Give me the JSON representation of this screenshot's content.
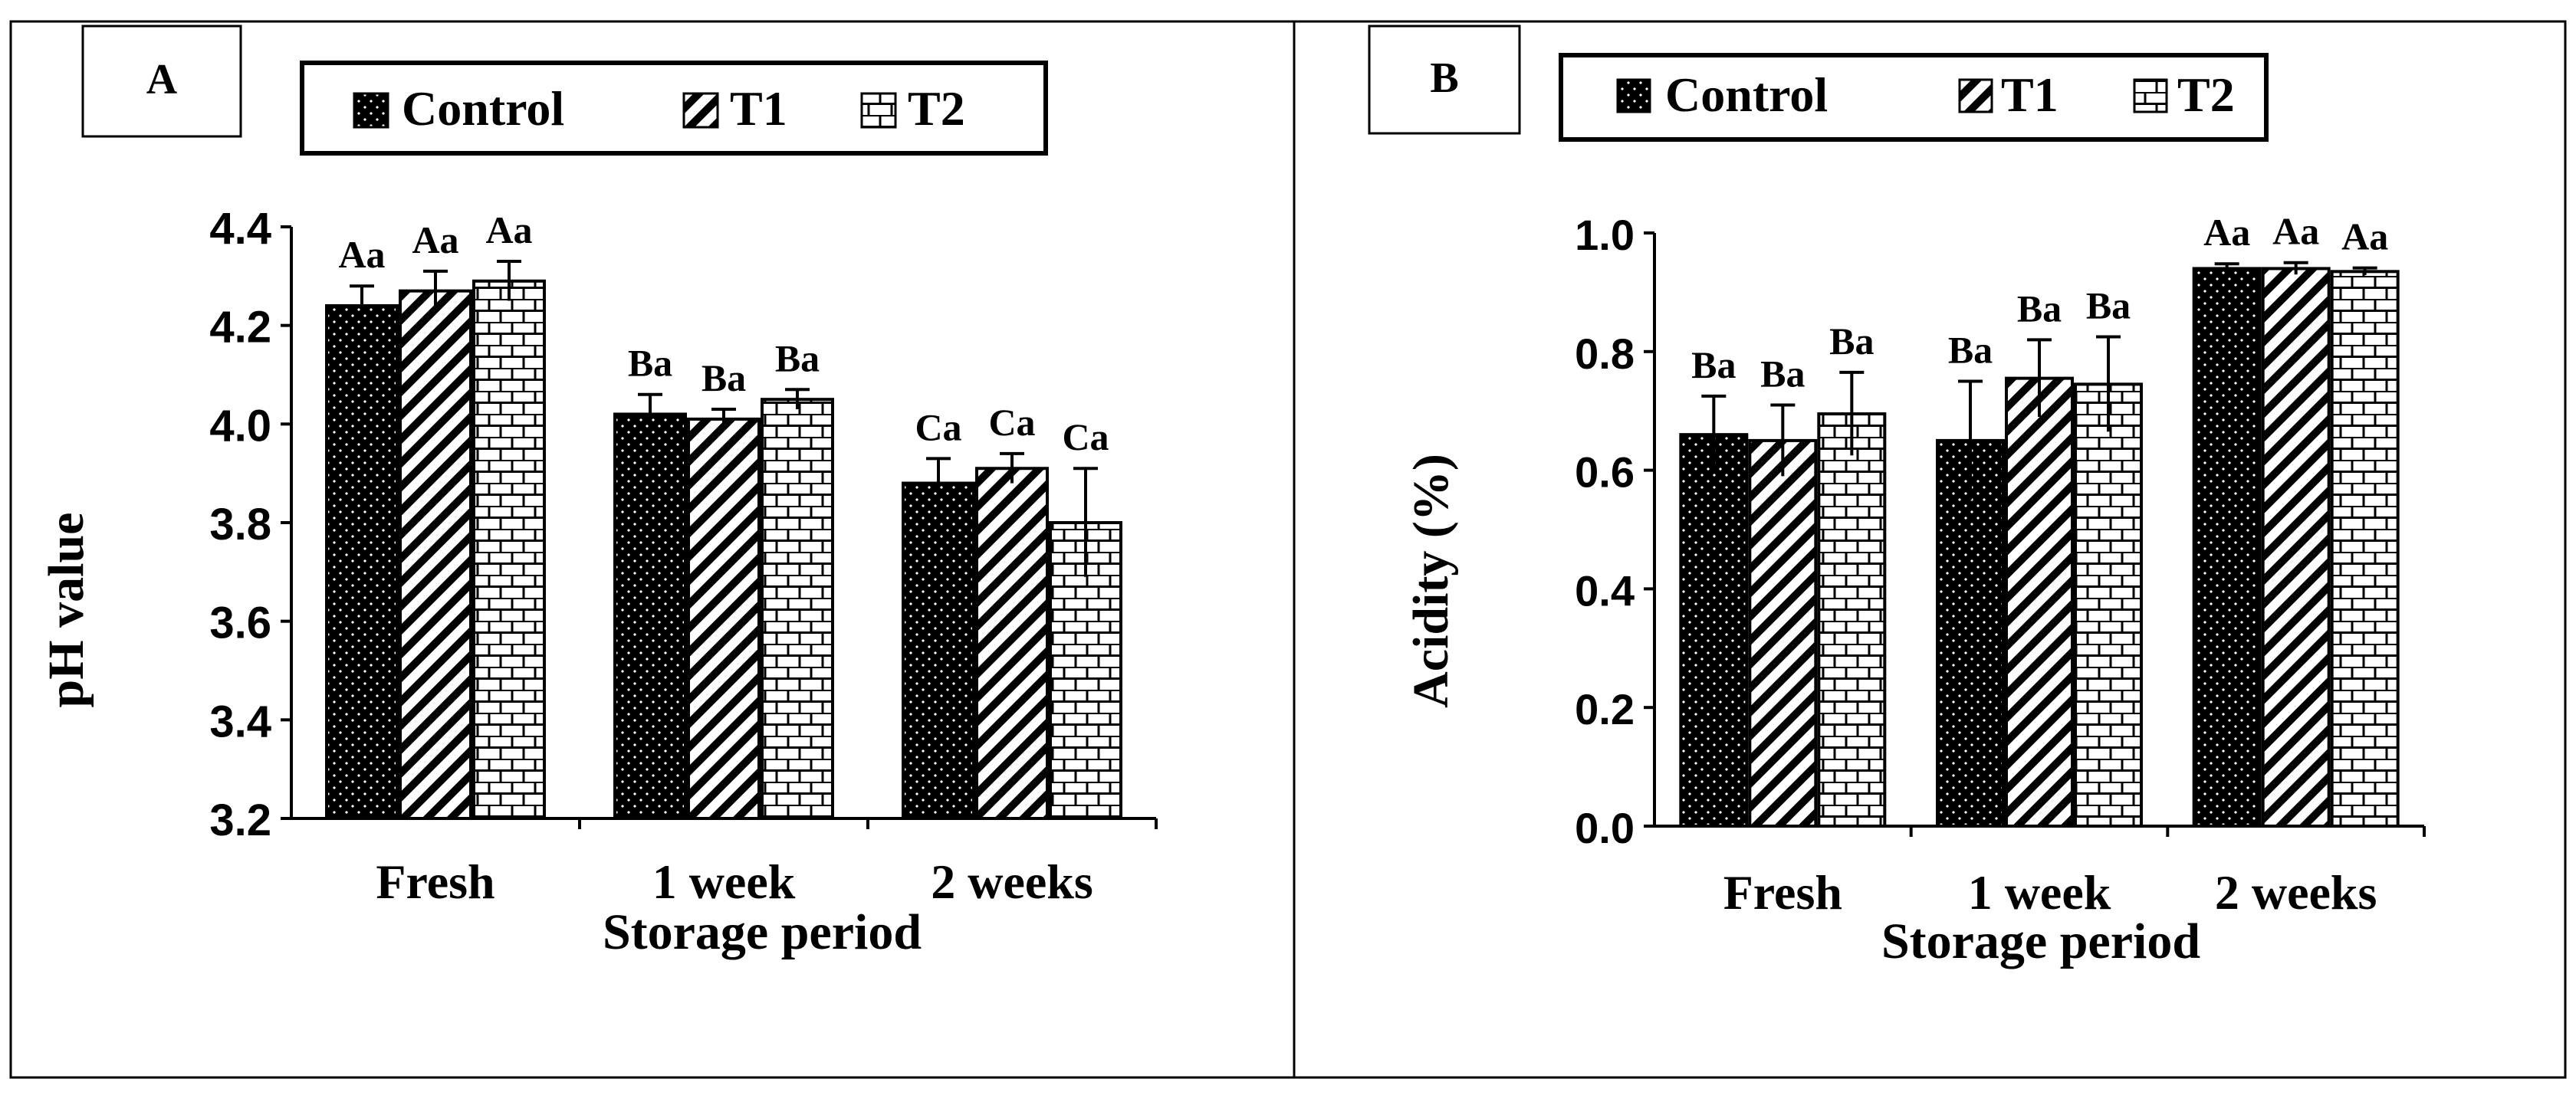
{
  "figure": {
    "colors": {
      "ink": "#000000",
      "paper": "#ffffff"
    }
  },
  "chart_data": [
    {
      "type": "bar",
      "panel_label": "A",
      "categories": [
        "Fresh",
        "1 week",
        "2 weeks"
      ],
      "series": [
        {
          "name": "Control",
          "pattern": "dots",
          "values": [
            4.24,
            4.02,
            3.88
          ],
          "errors": [
            0.04,
            0.04,
            0.05
          ]
        },
        {
          "name": "T1",
          "pattern": "diagonal",
          "values": [
            4.27,
            4.01,
            3.91
          ],
          "errors": [
            0.04,
            0.02,
            0.03
          ]
        },
        {
          "name": "T2",
          "pattern": "bricks",
          "values": [
            4.29,
            4.05,
            3.8
          ],
          "errors": [
            0.04,
            0.02,
            0.11
          ]
        }
      ],
      "significance_labels": [
        [
          "Aa",
          "Aa",
          "Aa"
        ],
        [
          "Ba",
          "Ba",
          "Ba"
        ],
        [
          "Ca",
          "Ca",
          "Ca"
        ]
      ],
      "ylim": [
        3.2,
        4.4
      ],
      "yticks": [
        "3.2",
        "3.4",
        "3.6",
        "3.8",
        "4.0",
        "4.2",
        "4.4"
      ],
      "xlabel": "Storage period",
      "ylabel": "pH value",
      "legend_position": "top-center"
    },
    {
      "type": "bar",
      "panel_label": "B",
      "categories": [
        "Fresh",
        "1 week",
        "2 weeks"
      ],
      "series": [
        {
          "name": "Control",
          "pattern": "dots",
          "values": [
            0.66,
            0.65,
            0.94
          ],
          "errors": [
            0.065,
            0.1,
            0.008
          ]
        },
        {
          "name": "T1",
          "pattern": "diagonal",
          "values": [
            0.65,
            0.755,
            0.94
          ],
          "errors": [
            0.06,
            0.065,
            0.01
          ]
        },
        {
          "name": "T2",
          "pattern": "bricks",
          "values": [
            0.695,
            0.745,
            0.935
          ],
          "errors": [
            0.07,
            0.08,
            0.006
          ]
        }
      ],
      "significance_labels": [
        [
          "Ba",
          "Ba",
          "Ba"
        ],
        [
          "Ba",
          "Ba",
          "Ba"
        ],
        [
          "Aa",
          "Aa",
          "Aa"
        ]
      ],
      "ylim": [
        0.0,
        1.0
      ],
      "yticks": [
        "0.0",
        "0.2",
        "0.4",
        "0.6",
        "0.8",
        "1.0"
      ],
      "xlabel": "Storage period",
      "ylabel": "Acidity (%)",
      "legend_position": "top-center"
    }
  ]
}
